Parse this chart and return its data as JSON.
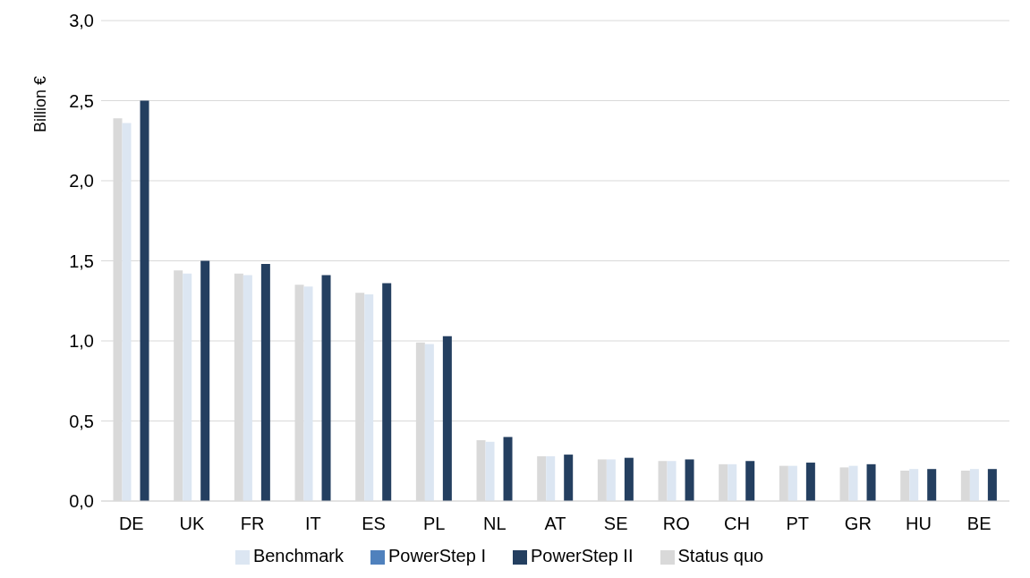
{
  "chart_data": {
    "type": "bar",
    "ylabel": "Billion €",
    "categories": [
      "DE",
      "UK",
      "FR",
      "IT",
      "ES",
      "PL",
      "NL",
      "AT",
      "SE",
      "RO",
      "CH",
      "PT",
      "GR",
      "HU",
      "BE"
    ],
    "series": [
      {
        "name": "Status quo",
        "color": "#d9d9d9",
        "values": [
          2.39,
          1.44,
          1.42,
          1.35,
          1.3,
          0.99,
          0.38,
          0.28,
          0.26,
          0.25,
          0.23,
          0.22,
          0.21,
          0.19,
          0.19
        ]
      },
      {
        "name": "Benchmark",
        "color": "#dce6f2",
        "values": [
          2.36,
          1.42,
          1.41,
          1.34,
          1.29,
          0.98,
          0.37,
          0.28,
          0.26,
          0.25,
          0.23,
          0.22,
          0.22,
          0.2,
          0.2
        ]
      },
      {
        "name": "PowerStep I",
        "color": "#4f81bd",
        "values": [
          null,
          null,
          null,
          null,
          null,
          null,
          null,
          null,
          null,
          null,
          null,
          null,
          null,
          null,
          null
        ]
      },
      {
        "name": "PowerStep II",
        "color": "#243f60",
        "values": [
          2.5,
          1.5,
          1.48,
          1.41,
          1.36,
          1.03,
          0.4,
          0.29,
          0.27,
          0.26,
          0.25,
          0.24,
          0.23,
          0.2,
          0.2
        ]
      }
    ],
    "ylim": [
      0,
      3
    ],
    "yticks": [
      {
        "value": 0,
        "label": "0,0"
      },
      {
        "value": 0.5,
        "label": "0,5"
      },
      {
        "value": 1,
        "label": "1,0"
      },
      {
        "value": 1.5,
        "label": "1,5"
      },
      {
        "value": 2,
        "label": "2,0"
      },
      {
        "value": 2.5,
        "label": "2,5"
      },
      {
        "value": 3,
        "label": "3,0"
      }
    ],
    "grid": "y",
    "legend": "bottom"
  }
}
